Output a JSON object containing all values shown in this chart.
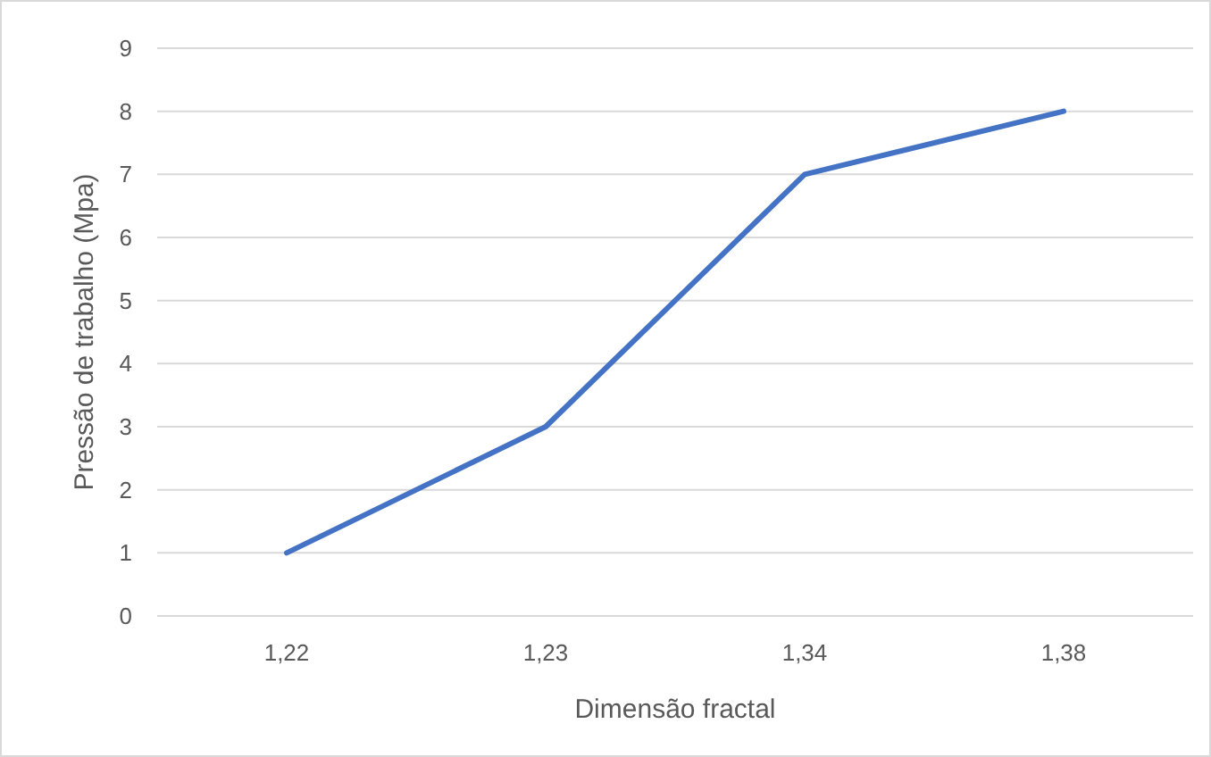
{
  "chart_data": {
    "type": "line",
    "xlabel": "Dimensão fractal",
    "ylabel": "Pressão de trabalho (Mpa)",
    "categories": [
      "1,22",
      "1,23",
      "1,34",
      "1,38"
    ],
    "series": [
      {
        "color": "#4472c4",
        "values": [
          1,
          3,
          7,
          8
        ]
      }
    ],
    "ylim": [
      0,
      9
    ],
    "yticks": [
      0,
      1,
      2,
      3,
      4,
      5,
      6,
      7,
      8,
      9
    ],
    "grid": "y",
    "marker": "none",
    "line_style": "solid"
  }
}
